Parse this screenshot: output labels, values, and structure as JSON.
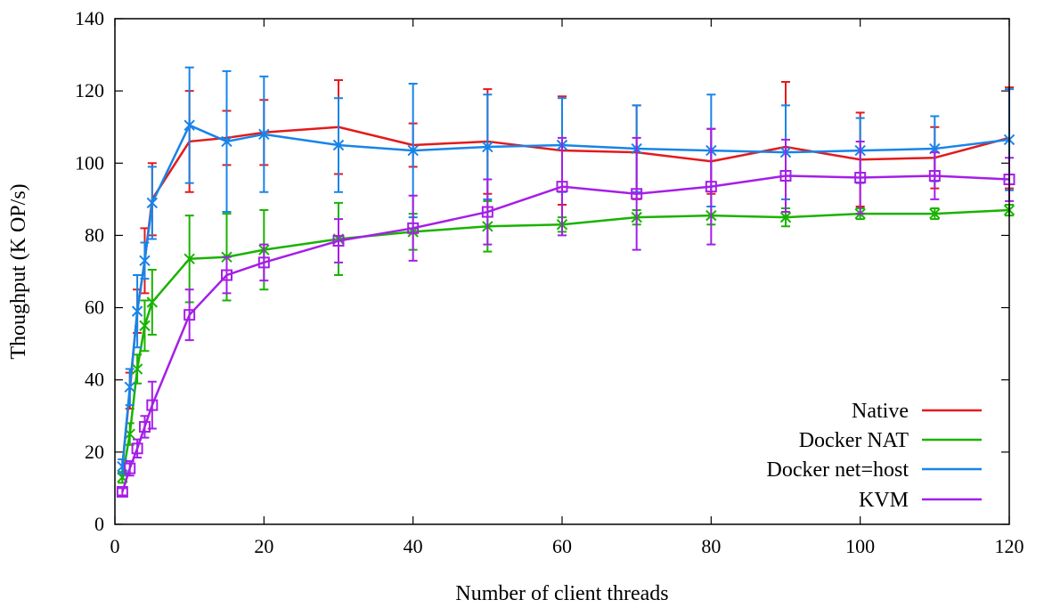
{
  "chart_data": {
    "type": "line",
    "title": "",
    "xlabel": "Number of client threads",
    "ylabel": "Thoughput (K OP/s)",
    "xlim": [
      0,
      120
    ],
    "ylim": [
      0,
      140
    ],
    "xticks": [
      0,
      20,
      40,
      60,
      80,
      100,
      120
    ],
    "yticks": [
      0,
      20,
      40,
      60,
      80,
      100,
      120,
      140
    ],
    "grid": false,
    "legend_position": "bottom-right",
    "series": [
      {
        "name": "Native",
        "color": "#e41a1c",
        "marker": "none",
        "x": [
          1,
          2,
          3,
          4,
          5,
          10,
          15,
          20,
          30,
          40,
          50,
          60,
          70,
          80,
          90,
          100,
          110,
          120
        ],
        "y": [
          16,
          37,
          59,
          73,
          90,
          106,
          107,
          108.5,
          110,
          105,
          106,
          103.5,
          103,
          100.5,
          104.5,
          101,
          101.5,
          107
        ],
        "err": [
          2,
          5,
          6,
          9,
          10,
          14,
          7.5,
          9,
          13,
          6,
          14.5,
          15,
          13,
          9,
          18,
          13,
          8.5,
          14
        ]
      },
      {
        "name": "Docker NAT",
        "color": "#19b300",
        "marker": "x",
        "x": [
          1,
          2,
          3,
          4,
          5,
          10,
          15,
          20,
          30,
          40,
          50,
          60,
          70,
          80,
          90,
          100,
          110,
          120
        ],
        "y": [
          13,
          25,
          43,
          55,
          61.5,
          73.5,
          74,
          76,
          79,
          81,
          82.5,
          83,
          85,
          85.5,
          85,
          86,
          86,
          87
        ],
        "err": [
          1.5,
          3,
          4,
          7,
          9,
          12,
          12,
          11,
          10,
          5,
          7,
          2,
          2,
          2.5,
          2.5,
          1.5,
          1.5,
          1.5
        ]
      },
      {
        "name": "Docker net=host",
        "color": "#1884e8",
        "marker": "star",
        "x": [
          1,
          2,
          3,
          4,
          5,
          10,
          15,
          20,
          30,
          40,
          50,
          60,
          70,
          80,
          90,
          100,
          110,
          120
        ],
        "y": [
          16,
          38,
          59,
          73,
          89,
          110.5,
          106,
          108,
          105,
          103.5,
          104.5,
          105,
          104,
          103.5,
          103,
          103.5,
          104,
          106.5
        ],
        "err": [
          2,
          5,
          10,
          5,
          10,
          16,
          19.5,
          16,
          13,
          18.5,
          14.5,
          13,
          12,
          15.5,
          13,
          9,
          9,
          14
        ]
      },
      {
        "name": "KVM",
        "color": "#a51ee8",
        "marker": "square",
        "x": [
          1,
          2,
          3,
          4,
          5,
          10,
          15,
          20,
          30,
          40,
          50,
          60,
          70,
          80,
          90,
          100,
          110,
          120
        ],
        "y": [
          9,
          15.5,
          21,
          27,
          33,
          58,
          69,
          72.5,
          78.5,
          82,
          86.5,
          93.5,
          91.5,
          93.5,
          96.5,
          96,
          96.5,
          95.5
        ],
        "err": [
          1,
          2,
          2.5,
          3,
          6.5,
          7,
          5,
          5,
          6,
          9,
          9,
          13.5,
          15.5,
          16,
          10,
          10,
          6.5,
          6
        ]
      }
    ]
  }
}
